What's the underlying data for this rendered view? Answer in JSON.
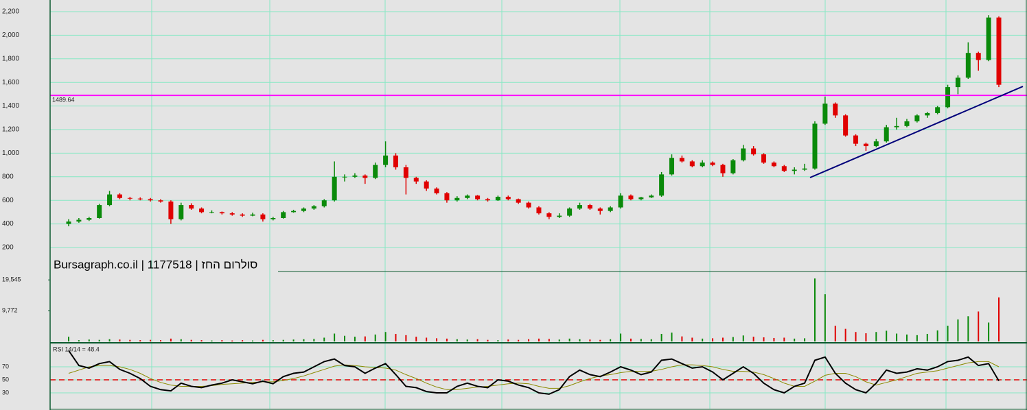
{
  "chart_data": [
    {
      "type": "candlestick",
      "title": "Bursagraph.co.il | 1177518 | סולרום החז",
      "up_color": "#0a8a0a",
      "down_color": "#e00000",
      "open": [
        400,
        420,
        435,
        450,
        560,
        650,
        620,
        615,
        610,
        600,
        590,
        440,
        560,
        530,
        500,
        500,
        490,
        480,
        470,
        480,
        440,
        450,
        500,
        510,
        530,
        550,
        600,
        800,
        800,
        810,
        790,
        900,
        980,
        880,
        790,
        760,
        700,
        660,
        600,
        620,
        640,
        610,
        600,
        630,
        610,
        580,
        540,
        490,
        460,
        470,
        530,
        560,
        530,
        510,
        540,
        640,
        610,
        625,
        640,
        820,
        960,
        930,
        890,
        920,
        900,
        830,
        940,
        1040,
        990,
        920,
        890,
        850,
        860,
        870,
        1250,
        1420,
        1320,
        1150,
        1080,
        1060,
        1100,
        1220,
        1230,
        1270,
        1320,
        1340,
        1390,
        1560,
        1640,
        1850,
        1790,
        2150
      ],
      "high": [
        440,
        450,
        460,
        570,
        680,
        660,
        630,
        625,
        620,
        610,
        600,
        580,
        575,
        540,
        515,
        505,
        500,
        490,
        495,
        490,
        460,
        510,
        520,
        540,
        560,
        610,
        930,
        820,
        830,
        820,
        920,
        1100,
        1000,
        900,
        800,
        770,
        710,
        670,
        635,
        650,
        645,
        620,
        640,
        640,
        615,
        590,
        550,
        500,
        490,
        540,
        580,
        570,
        540,
        550,
        660,
        650,
        630,
        650,
        840,
        990,
        980,
        940,
        940,
        930,
        910,
        950,
        1070,
        1060,
        1000,
        930,
        900,
        880,
        910,
        1270,
        1480,
        1430,
        1330,
        1160,
        1090,
        1120,
        1240,
        1300,
        1290,
        1330,
        1350,
        1400,
        1580,
        1660,
        1940,
        1860,
        2170,
        2160
      ],
      "low": [
        380,
        410,
        425,
        445,
        550,
        610,
        600,
        600,
        590,
        580,
        400,
        430,
        520,
        490,
        490,
        480,
        470,
        460,
        465,
        420,
        430,
        445,
        495,
        500,
        520,
        540,
        590,
        760,
        790,
        740,
        780,
        880,
        860,
        650,
        740,
        680,
        650,
        580,
        590,
        610,
        600,
        590,
        595,
        600,
        570,
        530,
        480,
        440,
        450,
        460,
        520,
        520,
        480,
        500,
        530,
        600,
        600,
        620,
        630,
        810,
        920,
        880,
        880,
        890,
        800,
        820,
        930,
        980,
        910,
        880,
        840,
        820,
        850,
        860,
        1240,
        1300,
        1140,
        1060,
        1020,
        1050,
        1090,
        1200,
        1220,
        1260,
        1300,
        1330,
        1380,
        1500,
        1630,
        1700,
        1780,
        1560
      ],
      "close": [
        420,
        435,
        450,
        560,
        650,
        620,
        615,
        610,
        600,
        590,
        440,
        560,
        530,
        500,
        500,
        490,
        480,
        470,
        480,
        440,
        450,
        500,
        510,
        530,
        550,
        600,
        800,
        800,
        810,
        790,
        900,
        980,
        880,
        790,
        760,
        700,
        660,
        600,
        620,
        640,
        610,
        600,
        630,
        610,
        580,
        540,
        490,
        460,
        470,
        530,
        560,
        530,
        510,
        540,
        640,
        610,
        625,
        640,
        820,
        960,
        930,
        890,
        920,
        900,
        830,
        940,
        1040,
        990,
        920,
        890,
        850,
        860,
        870,
        1250,
        1420,
        1320,
        1150,
        1080,
        1060,
        1100,
        1220,
        1230,
        1270,
        1320,
        1340,
        1390,
        1560,
        1640,
        1850,
        1790,
        2150,
        1580
      ],
      "ylim": [
        0,
        2300
      ],
      "yticks": [
        {
          "value": 2200,
          "label": "2,200"
        },
        {
          "value": 2000,
          "label": "2,000"
        },
        {
          "value": 1800,
          "label": "1,800"
        },
        {
          "value": 1600,
          "label": "1,600"
        },
        {
          "value": 1400,
          "label": "1,400"
        },
        {
          "value": 1200,
          "label": "1,200"
        },
        {
          "value": 1000,
          "label": "1,000"
        },
        800,
        600,
        400,
        200
      ],
      "hline": 1489.64,
      "hline_color": "#ff00ff",
      "trendline": [
        793,
        1566
      ],
      "trendline_color": "#00007a"
    },
    {
      "type": "bar",
      "values": [
        1500,
        400,
        600,
        500,
        700,
        600,
        500,
        400,
        500,
        400,
        900,
        700,
        500,
        400,
        300,
        400,
        300,
        400,
        300,
        500,
        400,
        500,
        600,
        700,
        800,
        1200,
        2500,
        1800,
        1500,
        1600,
        2200,
        3000,
        2400,
        2000,
        1500,
        1200,
        1000,
        900,
        700,
        600,
        700,
        500,
        400,
        600,
        500,
        700,
        900,
        800,
        600,
        900,
        700,
        600,
        500,
        700,
        2500,
        900,
        800,
        700,
        2400,
        2800,
        1600,
        1200,
        900,
        1000,
        1200,
        1400,
        1900,
        1500,
        1300,
        1100,
        1200,
        900,
        1000,
        20000,
        15000,
        5000,
        4000,
        3000,
        2600,
        3000,
        3400,
        2500,
        2200,
        2000,
        2400,
        3500,
        5000,
        7000,
        8000,
        9500,
        6000,
        14000
      ],
      "ylim": [
        0,
        22000
      ],
      "yticks": [
        {
          "value": 19545,
          "label": "19,545"
        },
        {
          "value": 9772,
          "label": "9,772"
        }
      ]
    },
    {
      "type": "line",
      "title": "RSI 14/14 = 48.4",
      "color": "#000000",
      "signal_color": "#8a8a00",
      "ref_color": "#e00000",
      "values": [
        95,
        72,
        68,
        75,
        78,
        66,
        60,
        52,
        40,
        35,
        33,
        45,
        40,
        38,
        42,
        45,
        50,
        47,
        44,
        48,
        44,
        55,
        60,
        62,
        70,
        78,
        82,
        72,
        70,
        60,
        68,
        75,
        58,
        40,
        38,
        32,
        30,
        30,
        40,
        45,
        40,
        38,
        50,
        48,
        42,
        38,
        30,
        28,
        35,
        55,
        65,
        58,
        55,
        62,
        70,
        65,
        58,
        62,
        80,
        82,
        75,
        68,
        70,
        62,
        50,
        60,
        70,
        60,
        45,
        35,
        30,
        40,
        45,
        80,
        85,
        60,
        45,
        35,
        30,
        45,
        65,
        60,
        62,
        67,
        65,
        70,
        78,
        80,
        85,
        72,
        75,
        48.4
      ],
      "signal": [
        60,
        65,
        70,
        72,
        72,
        70,
        66,
        60,
        52,
        46,
        42,
        40,
        40,
        40,
        41,
        43,
        44,
        45,
        46,
        47,
        47,
        49,
        52,
        56,
        61,
        66,
        71,
        73,
        72,
        70,
        69,
        68,
        65,
        58,
        52,
        45,
        39,
        35,
        35,
        37,
        39,
        40,
        42,
        44,
        45,
        44,
        40,
        37,
        37,
        41,
        47,
        52,
        56,
        58,
        61,
        63,
        63,
        63,
        66,
        70,
        73,
        73,
        72,
        70,
        66,
        63,
        63,
        62,
        58,
        52,
        45,
        40,
        40,
        48,
        57,
        60,
        60,
        55,
        47,
        42,
        46,
        50,
        55,
        60,
        62,
        64,
        68,
        72,
        76,
        78,
        78,
        70
      ],
      "ylim": [
        0,
        100
      ],
      "yticks": [
        70,
        50,
        30
      ]
    }
  ]
}
